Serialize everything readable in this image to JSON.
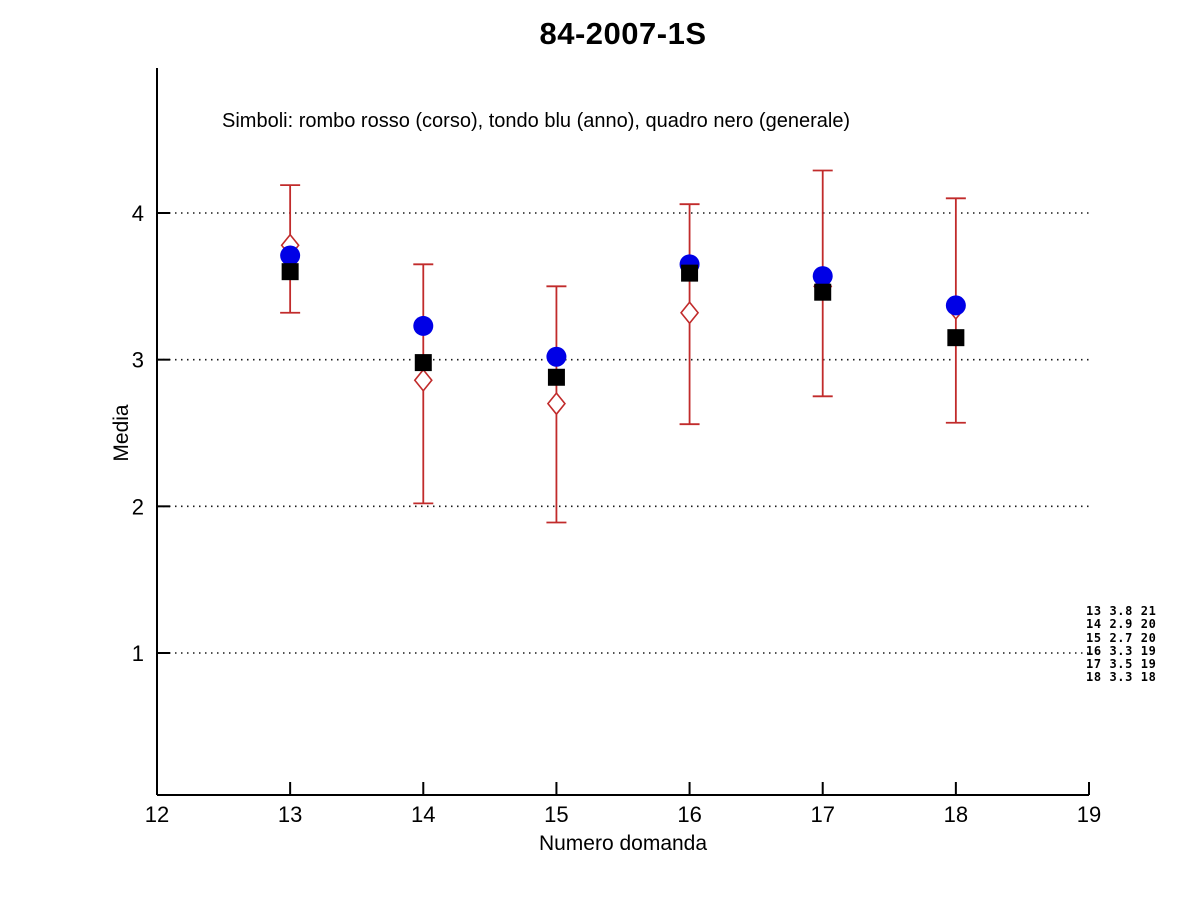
{
  "title": "84-2007-1S",
  "subtitle": "Simboli: rombo rosso (corso), tondo blu (anno), quadro nero (generale)",
  "xlabel": "Numero domanda",
  "ylabel": "Media",
  "colors": {
    "corso_red": "#c12b2b",
    "anno_blue": "#0000e6",
    "generale_black": "#000000",
    "grid": "#1a1a1a",
    "axis": "#000000",
    "background": "#ffffff"
  },
  "chart_data": {
    "type": "scatter",
    "title": "84-2007-1S",
    "xlabel": "Numero domanda",
    "ylabel": "Media",
    "xlim": [
      12,
      19
    ],
    "ylim": [
      0,
      4.75
    ],
    "x_ticks": [
      "12",
      "13",
      "14",
      "15",
      "16",
      "17",
      "18",
      "19"
    ],
    "y_ticks": [
      "1",
      "2",
      "3",
      "4"
    ],
    "y_tick_values": [
      1,
      2,
      3,
      4
    ],
    "grid": "horizontal dotted lines at each y tick",
    "legend_note": "Simboli: rombo rosso (corso), tondo blu (anno), quadro nero (generale)",
    "x": [
      13,
      14,
      15,
      16,
      17,
      18
    ],
    "series": [
      {
        "name": "corso (rombo rosso)",
        "marker": "open-diamond",
        "color": "#c12b2b",
        "values": [
          3.78,
          2.86,
          2.7,
          3.32,
          3.5,
          3.35
        ],
        "error_low": [
          3.32,
          2.02,
          1.89,
          2.56,
          2.75,
          2.57
        ],
        "error_high": [
          4.19,
          3.65,
          3.5,
          4.06,
          4.29,
          4.1
        ]
      },
      {
        "name": "anno (tondo blu)",
        "marker": "filled-circle",
        "color": "#0000e6",
        "values": [
          3.71,
          3.23,
          3.02,
          3.65,
          3.57,
          3.37
        ]
      },
      {
        "name": "generale (quadro nero)",
        "marker": "filled-square",
        "color": "#000000",
        "values": [
          3.6,
          2.98,
          2.88,
          3.59,
          3.46,
          3.15
        ]
      }
    ],
    "annotation_lines": [
      "13 3.8 21",
      "14 2.9 20",
      "15 2.7 20",
      "16 3.3 19",
      "17 3.5 19",
      "18 3.3 18"
    ]
  }
}
